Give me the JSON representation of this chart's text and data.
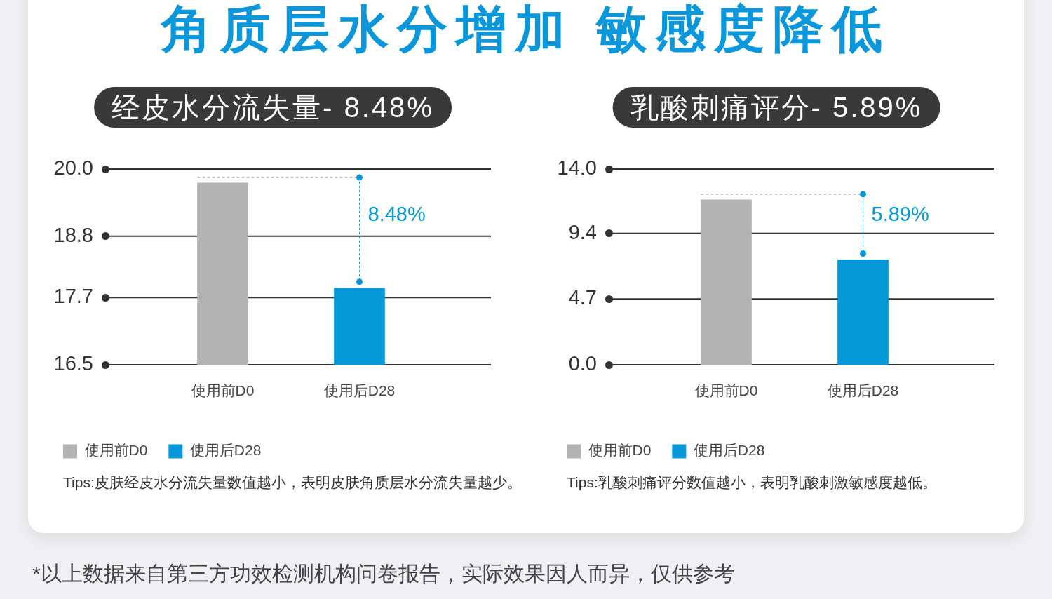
{
  "chart_data": [
    {
      "type": "other",
      "title": "角质层水分增加 敏感度降低"
    },
    {
      "type": "bar",
      "title": "经皮水分流失量- 8.48%",
      "categories": [
        "使用前D0",
        "使用后D28"
      ],
      "series": [
        {
          "name": "使用前D0",
          "color": "#b3b3b3",
          "values": [
            19.75,
            null
          ]
        },
        {
          "name": "使用后D28",
          "color": "#0698d8",
          "values": [
            null,
            17.87
          ]
        }
      ],
      "ylim": [
        16.5,
        20.0
      ],
      "yticks": [
        16.5,
        17.7,
        18.8,
        {
          "value": 20,
          "label": "20.0"
        }
      ],
      "grid": "y",
      "legend": "bottom left",
      "annotations": [
        "8.48%",
        "Tips:皮肤经皮水分流失量数值越小，表明皮肤角质层水分流失量越少。"
      ]
    },
    {
      "type": "bar",
      "title": "乳酸刺痛评分- 5.89%",
      "categories": [
        "使用前D0",
        "使用后D28"
      ],
      "series": [
        {
          "name": "使用前D0",
          "color": "#b3b3b3",
          "values": [
            11.8,
            null
          ]
        },
        {
          "name": "使用后D28",
          "color": "#0698d8",
          "values": [
            null,
            7.5
          ]
        }
      ],
      "ylim": [
        0,
        14
      ],
      "yticks": [
        {
          "value": 0,
          "label": "0.0"
        },
        4.7,
        9.4,
        {
          "value": 14,
          "label": "14.0"
        }
      ],
      "grid": "y",
      "legend": "bottom left",
      "annotations": [
        "5.89%",
        "Tips:乳酸刺痛评分数值越小，表明乳酸刺激敏感度越低。"
      ]
    },
    {
      "type": "other",
      "annotations": [
        "*以上数据来自第三方功效检测机构问卷报告，实际效果因人而异，仅供参考"
      ]
    }
  ]
}
